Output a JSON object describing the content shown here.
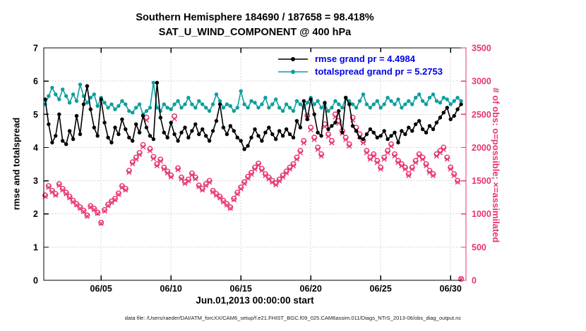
{
  "title": {
    "line1": "Southern Hemisphere 184690 / 187658 = 98.418%",
    "line2": "SAT_U_WIND_COMPONENT @ 400 hPa"
  },
  "axes": {
    "left_label": "rmse and totalspread",
    "right_label": "# of obs: o=possible; ×=assimilated",
    "x_label": "Jun.01,2013 00:00:00 start",
    "left_ticks": [
      0,
      1,
      2,
      3,
      4,
      5,
      6,
      7
    ],
    "right_ticks": [
      0,
      500,
      1000,
      1500,
      2000,
      2500,
      3000,
      3500
    ],
    "x_ticks": [
      {
        "day": 5,
        "label": "06/05"
      },
      {
        "day": 10,
        "label": "06/10"
      },
      {
        "day": 15,
        "label": "06/15"
      },
      {
        "day": 20,
        "label": "06/20"
      },
      {
        "day": 25,
        "label": "06/25"
      },
      {
        "day": 30,
        "label": "06/30"
      }
    ]
  },
  "legend": [
    {
      "name": "rmse",
      "label": "rmse grand pr = 4.4984",
      "color": "#000000"
    },
    {
      "name": "totalspread",
      "label": "totalspread grand pr = 5.2753",
      "color": "#0e9e9e"
    }
  ],
  "caption": "data file: /Users/raeder/DAI/ATM_forcXX/CAM6_setup/f.e21.FHIST_BGC.f09_025.CAM6assim.011/Diags_NTrS_2013-06/obs_diag_output.nc",
  "colors": {
    "rmse": "#000000",
    "totalspread": "#0e9e9e",
    "obs": "#e8356f",
    "legend_text": "#0000e6",
    "grid": "#c8c8c8"
  },
  "chart_data": {
    "type": "line",
    "title": "Southern Hemisphere 184690 / 187658 = 98.418% — SAT_U_WIND_COMPONENT @ 400 hPa",
    "x_start_day": 1,
    "x_step_days": 0.25,
    "x_range": [
      0.9,
      31.1
    ],
    "y_left_range": [
      0,
      7
    ],
    "y_right_range": [
      0,
      3500
    ],
    "grand_pr": {
      "rmse": 4.4984,
      "totalspread": 5.2753
    },
    "obs_summary": {
      "assimilated": 184690,
      "possible": 187658,
      "percent": 98.418
    },
    "series": [
      {
        "name": "rmse",
        "axis": "left",
        "marker": "dot",
        "color": "#000000",
        "values": [
          5.45,
          4.7,
          4.15,
          4.35,
          5.0,
          4.2,
          4.1,
          4.5,
          4.25,
          4.95,
          4.4,
          5.3,
          5.85,
          5.15,
          4.6,
          4.35,
          5.45,
          4.75,
          4.3,
          4.15,
          4.6,
          4.4,
          4.85,
          4.55,
          4.3,
          4.2,
          4.7,
          4.45,
          4.95,
          4.6,
          4.35,
          4.25,
          5.95,
          4.9,
          4.45,
          4.3,
          4.75,
          4.4,
          4.2,
          4.45,
          4.6,
          4.3,
          4.5,
          4.7,
          4.4,
          4.55,
          4.35,
          4.2,
          4.5,
          4.8,
          5.3,
          4.6,
          4.4,
          4.65,
          4.5,
          4.3,
          4.2,
          3.95,
          4.05,
          4.3,
          4.55,
          4.35,
          4.2,
          4.45,
          4.6,
          4.4,
          4.25,
          4.5,
          4.35,
          4.55,
          4.4,
          4.3,
          4.8,
          4.6,
          5.4,
          4.85,
          5.45,
          5.0,
          4.45,
          4.35,
          5.35,
          4.55,
          4.65,
          4.75,
          5.1,
          4.45,
          5.5,
          5.3,
          4.65,
          4.5,
          4.3,
          4.25,
          4.4,
          4.55,
          4.45,
          4.3,
          4.35,
          4.5,
          4.25,
          4.35,
          4.45,
          4.15,
          4.5,
          4.4,
          4.6,
          4.5,
          4.7,
          4.8,
          4.55,
          4.45,
          4.65,
          4.55,
          4.75,
          4.9,
          5.05,
          5.2,
          4.85,
          4.95,
          5.15,
          5.3
        ]
      },
      {
        "name": "totalspread",
        "axis": "left",
        "marker": "dot",
        "color": "#0e9e9e",
        "values": [
          5.3,
          5.55,
          5.8,
          5.6,
          5.45,
          5.75,
          5.55,
          5.35,
          5.6,
          5.4,
          5.9,
          5.55,
          5.35,
          5.5,
          5.6,
          5.25,
          5.5,
          5.35,
          5.2,
          5.3,
          5.15,
          5.25,
          5.4,
          5.3,
          5.1,
          5.05,
          5.2,
          5.3,
          5.0,
          5.1,
          5.2,
          5.95,
          5.2,
          5.1,
          5.3,
          5.2,
          5.15,
          5.3,
          5.4,
          5.2,
          5.3,
          5.5,
          5.3,
          5.2,
          5.4,
          5.3,
          5.2,
          5.1,
          5.3,
          5.6,
          5.4,
          5.2,
          5.3,
          5.25,
          5.1,
          5.2,
          5.7,
          5.3,
          5.2,
          5.4,
          5.35,
          5.2,
          5.3,
          5.5,
          5.2,
          5.3,
          5.45,
          5.2,
          5.1,
          5.3,
          5.2,
          5.1,
          5.4,
          5.3,
          5.2,
          5.35,
          5.5,
          5.3,
          5.4,
          5.2,
          5.3,
          5.1,
          5.2,
          5.4,
          5.3,
          5.2,
          5.5,
          5.4,
          5.3,
          5.2,
          5.4,
          5.6,
          5.3,
          5.2,
          5.3,
          5.4,
          5.2,
          5.3,
          5.5,
          5.4,
          5.3,
          5.45,
          5.2,
          5.3,
          5.4,
          5.3,
          5.5,
          5.6,
          5.4,
          5.3,
          5.5,
          5.6,
          5.4,
          5.35,
          5.5,
          5.45,
          5.3,
          5.4,
          5.5,
          5.4
        ]
      },
      {
        "name": "obs_possible",
        "axis": "right",
        "marker": "circle",
        "color": "#e8356f",
        "values": [
          1280,
          1420,
          1350,
          1300,
          1450,
          1380,
          1320,
          1260,
          1200,
          1150,
          1100,
          1050,
          980,
          1120,
          1080,
          1020,
          870,
          1060,
          1140,
          1190,
          1230,
          1310,
          1420,
          1380,
          1650,
          1780,
          1850,
          1920,
          2040,
          2450,
          1980,
          1860,
          1750,
          1820,
          1700,
          1640,
          1580,
          2470,
          1690,
          1550,
          1480,
          1520,
          1610,
          1550,
          1430,
          1380,
          1450,
          1500,
          1350,
          1300,
          1260,
          1200,
          1150,
          1100,
          1230,
          1320,
          1400,
          1480,
          1560,
          1620,
          1700,
          1760,
          1680,
          1600,
          1550,
          1500,
          1460,
          1520,
          1580,
          1640,
          1700,
          1750,
          1850,
          1950,
          2100,
          2480,
          2300,
          2150,
          2000,
          1900,
          2350,
          2200,
          2100,
          2500,
          2400,
          2250,
          2150,
          2050,
          2450,
          2300,
          2200,
          2100,
          1950,
          1850,
          1900,
          1800,
          1700,
          1850,
          1950,
          2050,
          1900,
          1800,
          1750,
          1700,
          1600,
          1700,
          1800,
          1900,
          1850,
          1750,
          1650,
          1600,
          1900,
          1950,
          2000,
          1850,
          1700,
          1600,
          1500,
          20
        ]
      },
      {
        "name": "obs_assimilated",
        "axis": "right",
        "marker": "x",
        "color": "#e8356f",
        "values": [
          1261,
          1399,
          1330,
          1280,
          1428,
          1359,
          1300,
          1241,
          1182,
          1133,
          1083,
          1034,
          965,
          1103,
          1064,
          1005,
          857,
          1044,
          1123,
          1172,
          1212,
          1290,
          1399,
          1359,
          1625,
          1753,
          1822,
          1891,
          2009,
          2413,
          1950,
          1832,
          1724,
          1793,
          1674,
          1615,
          1556,
          2433,
          1665,
          1527,
          1458,
          1497,
          1586,
          1527,
          1409,
          1359,
          1428,
          1477,
          1330,
          1280,
          1241,
          1182,
          1133,
          1083,
          1212,
          1300,
          1379,
          1458,
          1537,
          1596,
          1674,
          1734,
          1655,
          1576,
          1527,
          1477,
          1438,
          1497,
          1556,
          1615,
          1674,
          1724,
          1822,
          1921,
          2068,
          2443,
          2265,
          2118,
          1970,
          1871,
          2315,
          2167,
          2068,
          2462,
          2364,
          2216,
          2118,
          2019,
          2413,
          2265,
          2167,
          2068,
          1921,
          1822,
          1871,
          1773,
          1674,
          1822,
          1921,
          2019,
          1871,
          1773,
          1724,
          1674,
          1576,
          1674,
          1773,
          1871,
          1822,
          1724,
          1625,
          1576,
          1871,
          1921,
          1970,
          1822,
          1674,
          1576,
          1477,
          20
        ]
      }
    ]
  }
}
